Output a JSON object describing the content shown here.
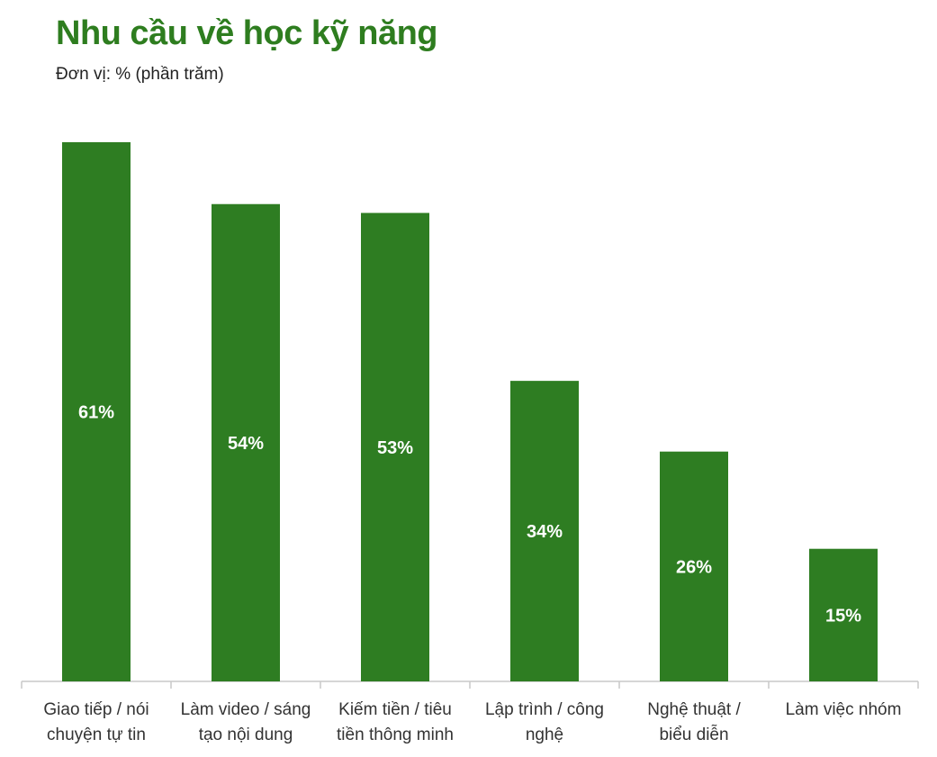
{
  "title": "Nhu cầu về học kỹ năng",
  "subtitle": "Đơn vị: % (phần trăm)",
  "colors": {
    "bar": "#2e7d22",
    "title": "#2e7d1f",
    "axis": "#c8c8c8",
    "label": "#333333",
    "value_label": "#ffffff"
  },
  "chart_data": {
    "type": "bar",
    "title": "Nhu cầu về học kỹ năng",
    "subtitle": "Đơn vị: % (phần trăm)",
    "categories": [
      [
        "Giao tiếp / nói",
        "chuyện tự tin"
      ],
      [
        "Làm video / sáng",
        "tạo nội dung"
      ],
      [
        "Kiếm tiền / tiêu",
        "tiền thông minh"
      ],
      [
        "Lập trình / công",
        "nghệ"
      ],
      [
        "Nghệ thuật /",
        "biểu diễn"
      ],
      [
        "Làm việc nhóm"
      ]
    ],
    "values": [
      61,
      54,
      53,
      34,
      26,
      15
    ],
    "data_labels": [
      "61%",
      "54%",
      "53%",
      "34%",
      "26%",
      "15%"
    ],
    "xlabel": "",
    "ylabel": "",
    "ylim": [
      0,
      61
    ],
    "grid": false,
    "legend": "none"
  }
}
